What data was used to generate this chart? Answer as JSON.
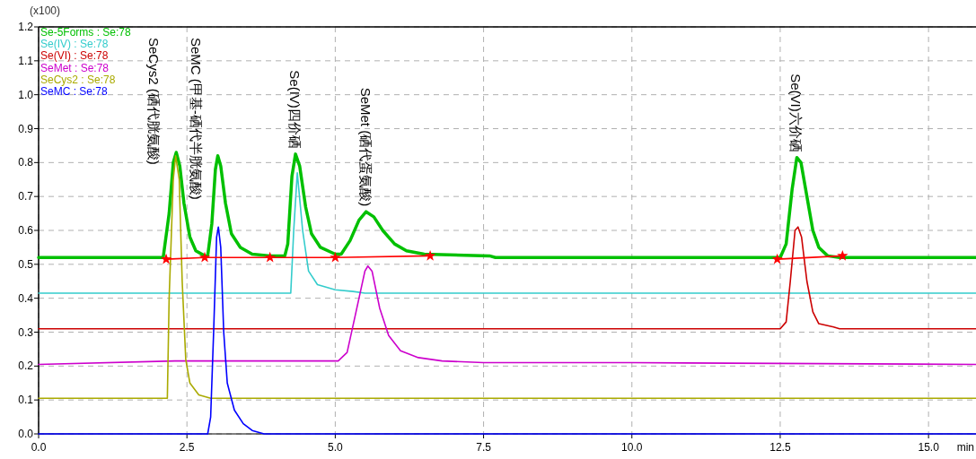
{
  "chart_data": {
    "type": "line",
    "xlabel": "min",
    "ylabel": "(x100)",
    "legend": "top left",
    "grid": true,
    "line_style": "solid",
    "marker": "none",
    "xlim": [
      0,
      15.8
    ],
    "ylim": [
      0,
      1.2
    ],
    "xticks": [
      {
        "value": 0,
        "label": "0.0"
      },
      {
        "value": 2.5,
        "label": "2.5"
      },
      {
        "value": 5,
        "label": "5.0"
      },
      {
        "value": 7.5,
        "label": "7.5"
      },
      {
        "value": 10,
        "label": "10.0"
      },
      {
        "value": 12.5,
        "label": "12.5"
      },
      {
        "value": 15,
        "label": "15.0"
      }
    ],
    "yticks": [
      {
        "value": 0,
        "label": "0.0"
      },
      {
        "value": 0.1,
        "label": "0.1"
      },
      {
        "value": 0.2,
        "label": "0.2"
      },
      {
        "value": 0.3,
        "label": "0.3"
      },
      {
        "value": 0.4,
        "label": "0.4"
      },
      {
        "value": 0.5,
        "label": "0.5"
      },
      {
        "value": 0.6,
        "label": "0.6"
      },
      {
        "value": 0.7,
        "label": "0.7"
      },
      {
        "value": 0.8,
        "label": "0.8"
      },
      {
        "value": 0.9,
        "label": "0.9"
      },
      {
        "value": 1.0,
        "label": "1.0"
      },
      {
        "value": 1.1,
        "label": "1.1"
      },
      {
        "value": 1.2,
        "label": "1.2"
      }
    ],
    "series": [
      {
        "name": "Se-5Forms : Se:78",
        "color": "#00c000",
        "x": [
          0,
          2.1,
          2.2,
          2.27,
          2.32,
          2.38,
          2.45,
          2.55,
          2.65,
          2.8,
          2.85,
          2.92,
          2.98,
          3.02,
          3.07,
          3.15,
          3.25,
          3.4,
          3.6,
          3.9,
          4.15,
          4.2,
          4.27,
          4.33,
          4.4,
          4.5,
          4.6,
          4.75,
          5.0,
          5.1,
          5.25,
          5.4,
          5.52,
          5.65,
          5.8,
          6.0,
          6.2,
          6.5,
          7.6,
          7.7,
          12.5,
          12.6,
          12.7,
          12.78,
          12.85,
          12.95,
          13.05,
          13.15,
          13.3,
          13.5,
          15.8
        ],
        "values": [
          0.52,
          0.52,
          0.65,
          0.8,
          0.83,
          0.79,
          0.68,
          0.58,
          0.54,
          0.525,
          0.525,
          0.62,
          0.78,
          0.82,
          0.79,
          0.68,
          0.59,
          0.55,
          0.53,
          0.525,
          0.525,
          0.56,
          0.76,
          0.825,
          0.79,
          0.67,
          0.59,
          0.55,
          0.53,
          0.53,
          0.57,
          0.63,
          0.655,
          0.64,
          0.6,
          0.56,
          0.54,
          0.53,
          0.525,
          0.52,
          0.52,
          0.56,
          0.72,
          0.815,
          0.8,
          0.7,
          0.6,
          0.55,
          0.525,
          0.52,
          0.52
        ]
      },
      {
        "name": "Se(IV) : Se:78",
        "color": "#33cccc",
        "x": [
          0,
          4.25,
          4.3,
          4.36,
          4.45,
          4.55,
          4.7,
          5.0,
          5.3,
          5.5,
          15.8
        ],
        "values": [
          0.415,
          0.415,
          0.6,
          0.77,
          0.6,
          0.48,
          0.44,
          0.425,
          0.42,
          0.415,
          0.415
        ]
      },
      {
        "name": "Se(VI) : Se:78",
        "color": "#cc0000",
        "x": [
          0,
          12.5,
          12.6,
          12.67,
          12.75,
          12.8,
          12.86,
          12.95,
          13.05,
          13.15,
          13.4,
          13.5,
          15.8
        ],
        "values": [
          0.31,
          0.31,
          0.33,
          0.45,
          0.6,
          0.61,
          0.58,
          0.45,
          0.36,
          0.325,
          0.315,
          0.31,
          0.31
        ]
      },
      {
        "name": "SeMet : Se:78",
        "color": "#cc00cc",
        "x": [
          0,
          2.3,
          5.05,
          5.2,
          5.35,
          5.5,
          5.55,
          5.62,
          5.75,
          5.9,
          6.1,
          6.4,
          6.8,
          7.5,
          10,
          15.8
        ],
        "values": [
          0.205,
          0.215,
          0.215,
          0.24,
          0.36,
          0.48,
          0.495,
          0.48,
          0.37,
          0.29,
          0.245,
          0.225,
          0.215,
          0.21,
          0.21,
          0.205
        ]
      },
      {
        "name": "SeCys2 : Se:78",
        "color": "#aaaa00",
        "x": [
          0,
          2.17,
          2.2,
          2.27,
          2.31,
          2.37,
          2.42,
          2.48,
          2.55,
          2.7,
          2.9,
          15.8
        ],
        "values": [
          0.105,
          0.105,
          0.4,
          0.75,
          0.82,
          0.75,
          0.45,
          0.22,
          0.15,
          0.115,
          0.105,
          0.105
        ]
      },
      {
        "name": "SeMC : Se:78",
        "color": "#0000ff",
        "x": [
          0,
          2.85,
          2.9,
          2.95,
          3.0,
          3.03,
          3.07,
          3.12,
          3.18,
          3.3,
          3.45,
          3.6,
          3.8,
          15.8
        ],
        "values": [
          0,
          0,
          0.05,
          0.3,
          0.58,
          0.61,
          0.55,
          0.3,
          0.15,
          0.07,
          0.03,
          0.01,
          0,
          0
        ]
      },
      {
        "color": "#ff0000",
        "marker": "star",
        "x": [
          2.15,
          2.8,
          3.9,
          5.0,
          6.6,
          null,
          12.45,
          13.55
        ],
        "values": [
          0.515,
          0.52,
          0.52,
          0.52,
          0.525,
          null,
          0.515,
          0.525
        ]
      }
    ],
    "annotations": [
      {
        "text": "SeCys2 (硒代胱氨酸)",
        "x": 2.32,
        "y": 0.83
      },
      {
        "text": "SeMC (甲基-硒代半胱氨酸)",
        "x": 3.02,
        "y": 0.82
      },
      {
        "text": "Se(IV)四价硒",
        "x": 4.33,
        "y": 0.825
      },
      {
        "text": "SeMet (硒代蛋氨酸)",
        "x": 5.52,
        "y": 0.655
      },
      {
        "text": "Se(VI)六价硒",
        "x": 12.78,
        "y": 0.815
      }
    ]
  }
}
